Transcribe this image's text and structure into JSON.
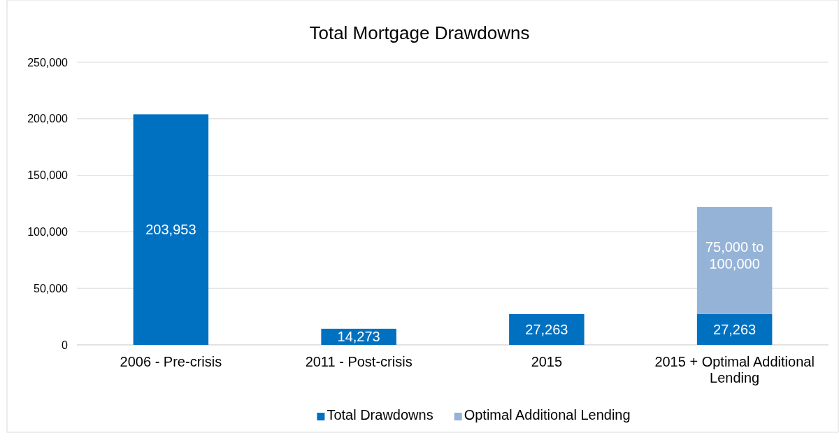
{
  "chart_data": {
    "type": "bar",
    "title": "Total Mortgage Drawdowns",
    "categories": [
      "2006 - Pre-crisis",
      "2011 - Post-crisis",
      "2015",
      "2015 + Optimal Additional Lending"
    ],
    "stacked": true,
    "ylim": [
      0,
      250000
    ],
    "yticks": [
      {
        "value": 0,
        "label": "0"
      },
      {
        "value": 50000,
        "label": "50,000"
      },
      {
        "value": 100000,
        "label": "100,000"
      },
      {
        "value": 150000,
        "label": "150,000"
      },
      {
        "value": 200000,
        "label": "200,000"
      },
      {
        "value": 250000,
        "label": "250,000"
      }
    ],
    "grid": "y",
    "legend": "bottom",
    "series": [
      {
        "name": "Total Drawdowns",
        "color": "#0070c0",
        "values": [
          203953,
          14273,
          27263,
          27263
        ],
        "value_labels": [
          "203,953",
          "14,273",
          "27,263",
          "27,263"
        ]
      },
      {
        "name": "Optimal Additional Lending",
        "color": "#95b3d7",
        "values": [
          null,
          null,
          null,
          94700
        ]
      }
    ],
    "annotations": [
      "75,000 to 100,000"
    ]
  }
}
